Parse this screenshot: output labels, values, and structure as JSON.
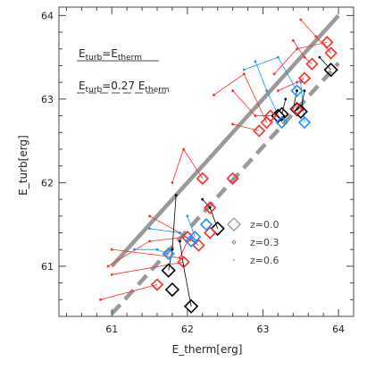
{
  "chart_data": {
    "type": "scatter",
    "title": "",
    "xlabel": "E_therm[erg]",
    "ylabel": "E_turb[erg]",
    "xlim": [
      60.3,
      64.2
    ],
    "ylim": [
      60.4,
      64.1
    ],
    "x_ticks": [
      "61",
      "62",
      "63",
      "64"
    ],
    "y_ticks": [
      "61",
      "62",
      "63",
      "64"
    ],
    "grid": false,
    "legend_position": "bottom-right",
    "colors": {
      "z00": "#000000",
      "z03": "#ff2a2a",
      "z06": "#1e90ff",
      "line": "#999999"
    },
    "reference_lines": [
      {
        "label_main": "E",
        "label_sub1": "turb",
        "label_mid": "=E",
        "label_sub2": "therm",
        "slope": 1.0,
        "style": "solid"
      },
      {
        "label_main": "E",
        "label_sub1": "turb",
        "label_mid": "=0.27 E",
        "label_sub2": "therm",
        "slope": 1.0,
        "offset_log": -0.57,
        "style": "dashed"
      }
    ],
    "legend": [
      {
        "label": "z=0.0",
        "marker": "diamond-large"
      },
      {
        "label": "z=0.3",
        "marker": "diamond-medium"
      },
      {
        "label": "z=0.6",
        "marker": "diamond-small"
      }
    ],
    "series": [
      {
        "name": "z=0.0",
        "color": "#000000",
        "marker": "diamond-large",
        "x": [
          61.75,
          61.8,
          62.05,
          62.4,
          63.2,
          63.25,
          63.45,
          63.5,
          63.9
        ],
        "y": [
          60.95,
          60.72,
          60.52,
          61.45,
          62.8,
          62.82,
          62.88,
          62.85,
          63.35
        ]
      },
      {
        "name": "z=0.3",
        "color": "#ff2a2a",
        "marker": "diamond-medium",
        "x": [
          61.6,
          61.95,
          62.0,
          62.15,
          62.2,
          62.3,
          62.3,
          62.6,
          62.95,
          63.05,
          63.1,
          63.45,
          63.55,
          63.65,
          63.85,
          63.9
        ],
        "y": [
          60.78,
          61.05,
          61.35,
          61.25,
          62.05,
          61.4,
          61.7,
          62.05,
          62.62,
          62.72,
          62.8,
          62.88,
          63.25,
          63.42,
          63.68,
          63.55
        ]
      },
      {
        "name": "z=0.6",
        "color": "#1e90ff",
        "marker": "diamond-small",
        "x": [
          61.75,
          62.05,
          62.1,
          62.25,
          63.25,
          63.45,
          63.55
        ],
        "y": [
          61.15,
          61.3,
          61.35,
          61.5,
          62.72,
          63.1,
          62.72
        ]
      }
    ],
    "tracks": [
      {
        "color": "#ff2a2a",
        "points": [
          [
            60.85,
            60.6
          ],
          [
            61.6,
            60.78
          ]
        ]
      },
      {
        "color": "#ff2a2a",
        "points": [
          [
            61.0,
            60.9
          ],
          [
            61.95,
            61.05
          ]
        ]
      },
      {
        "color": "#ff2a2a",
        "points": [
          [
            60.95,
            61.0
          ],
          [
            61.5,
            61.3
          ],
          [
            62.0,
            61.35
          ]
        ]
      },
      {
        "color": "#ff2a2a",
        "points": [
          [
            61.5,
            61.6
          ],
          [
            61.9,
            61.4
          ],
          [
            62.15,
            61.25
          ]
        ]
      },
      {
        "color": "#ff2a2a",
        "points": [
          [
            61.8,
            62.0
          ],
          [
            61.95,
            62.4
          ],
          [
            62.2,
            62.05
          ]
        ]
      },
      {
        "color": "#ff2a2a",
        "points": [
          [
            61.0,
            61.2
          ],
          [
            61.9,
            61.1
          ],
          [
            62.0,
            61.3
          ]
        ]
      },
      {
        "color": "#ff2a2a",
        "points": [
          [
            62.6,
            62.7
          ],
          [
            62.95,
            62.62
          ]
        ]
      },
      {
        "color": "#ff2a2a",
        "points": [
          [
            62.35,
            63.05
          ],
          [
            62.75,
            63.3
          ],
          [
            63.05,
            62.72
          ]
        ]
      },
      {
        "color": "#ff2a2a",
        "points": [
          [
            62.6,
            63.1
          ],
          [
            62.9,
            62.8
          ],
          [
            63.1,
            62.8
          ]
        ]
      },
      {
        "color": "#ff2a2a",
        "points": [
          [
            63.15,
            63.3
          ],
          [
            63.45,
            63.6
          ],
          [
            63.85,
            63.68
          ]
        ]
      },
      {
        "color": "#ff2a2a",
        "points": [
          [
            63.4,
            63.7
          ],
          [
            63.55,
            63.5
          ],
          [
            63.65,
            63.42
          ]
        ]
      },
      {
        "color": "#ff2a2a",
        "points": [
          [
            63.2,
            63.1
          ],
          [
            63.45,
            63.2
          ],
          [
            63.55,
            63.25
          ]
        ]
      },
      {
        "color": "#ff2a2a",
        "points": [
          [
            63.5,
            63.95
          ],
          [
            63.7,
            63.75
          ],
          [
            63.9,
            63.55
          ]
        ]
      },
      {
        "color": "#1e90ff",
        "points": [
          [
            61.3,
            61.2
          ],
          [
            61.6,
            61.2
          ],
          [
            61.75,
            61.15
          ]
        ]
      },
      {
        "color": "#1e90ff",
        "points": [
          [
            61.5,
            61.45
          ],
          [
            61.9,
            61.4
          ],
          [
            62.05,
            61.3
          ]
        ]
      },
      {
        "color": "#1e90ff",
        "points": [
          [
            62.0,
            61.6
          ],
          [
            62.1,
            61.35
          ]
        ]
      },
      {
        "color": "#1e90ff",
        "points": [
          [
            62.9,
            63.45
          ],
          [
            63.05,
            63.1
          ],
          [
            63.25,
            62.72
          ]
        ]
      },
      {
        "color": "#1e90ff",
        "points": [
          [
            62.75,
            63.35
          ],
          [
            63.2,
            63.5
          ],
          [
            63.45,
            63.1
          ]
        ]
      },
      {
        "color": "#1e90ff",
        "points": [
          [
            63.5,
            63.2
          ],
          [
            63.55,
            62.72
          ]
        ]
      },
      {
        "color": "#000000",
        "points": [
          [
            61.85,
            61.85
          ],
          [
            61.8,
            61.2
          ],
          [
            61.75,
            60.95
          ]
        ]
      },
      {
        "color": "#000000",
        "points": [
          [
            61.9,
            61.3
          ],
          [
            61.95,
            61.0
          ],
          [
            62.05,
            60.52
          ]
        ]
      },
      {
        "color": "#000000",
        "points": [
          [
            62.2,
            61.8
          ],
          [
            62.3,
            61.7
          ],
          [
            62.4,
            61.45
          ]
        ]
      },
      {
        "color": "#000000",
        "points": [
          [
            63.3,
            63.0
          ],
          [
            63.25,
            62.82
          ]
        ]
      },
      {
        "color": "#000000",
        "points": [
          [
            63.45,
            63.1
          ],
          [
            63.4,
            62.88
          ]
        ]
      },
      {
        "color": "#000000",
        "points": [
          [
            63.55,
            63.1
          ],
          [
            63.5,
            62.85
          ]
        ]
      },
      {
        "color": "#000000",
        "points": [
          [
            63.75,
            63.5
          ],
          [
            63.9,
            63.35
          ]
        ]
      }
    ]
  }
}
